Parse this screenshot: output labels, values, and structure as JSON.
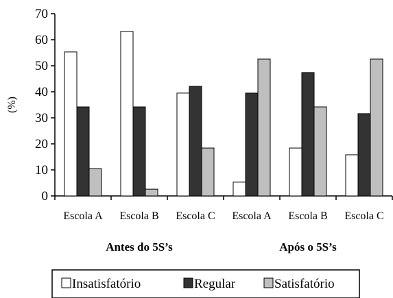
{
  "chart_data": {
    "type": "bar",
    "ylabel": "(%)",
    "ylim": [
      0,
      70
    ],
    "yticks": [
      "0",
      "10",
      "20",
      "30",
      "40",
      "50",
      "60",
      "70"
    ],
    "categories": [
      "Escola A",
      "Escola B",
      "Escola C",
      "Escola A",
      "Escola B",
      "Escola C"
    ],
    "groups": [
      {
        "label": "Antes do 5S’s",
        "categories": [
          0,
          1,
          2
        ]
      },
      {
        "label": "Após o 5S’s",
        "categories": [
          3,
          4,
          5
        ]
      }
    ],
    "series": [
      {
        "name": "Insatisfatório",
        "color": "#ffffff",
        "values": [
          55.3,
          63.2,
          39.5,
          5.3,
          18.4,
          15.8
        ]
      },
      {
        "name": "Regular",
        "color": "#333333",
        "values": [
          34.2,
          34.2,
          42.1,
          39.5,
          47.4,
          31.6
        ]
      },
      {
        "name": "Satisfatório",
        "color": "#bfbfbf",
        "values": [
          10.5,
          2.6,
          18.4,
          52.6,
          34.2,
          52.6
        ]
      }
    ],
    "grid": false,
    "legend_position": "bottom"
  }
}
